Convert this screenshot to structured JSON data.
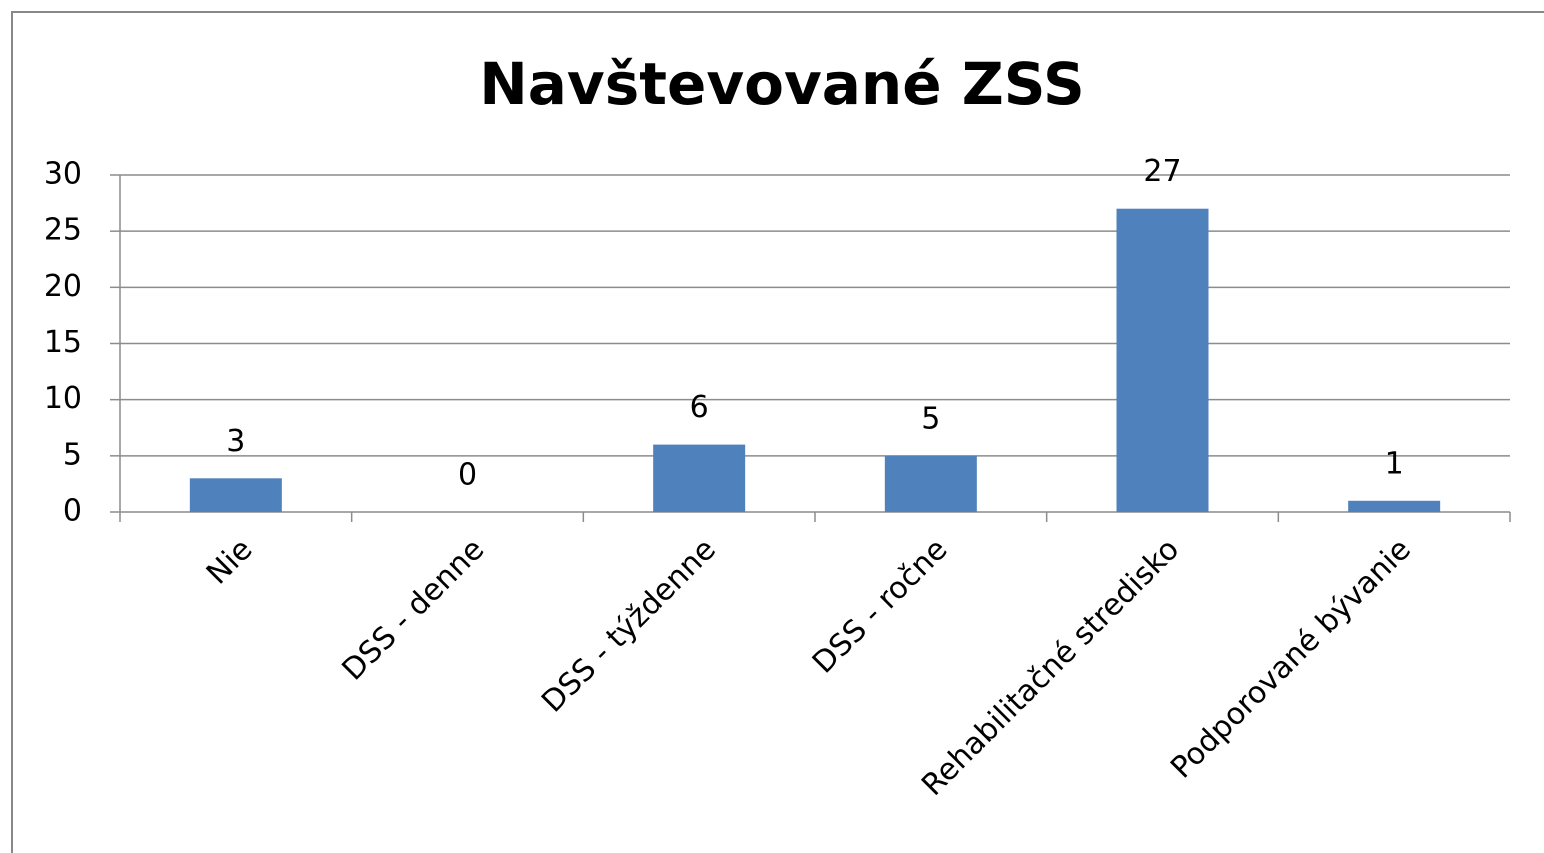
{
  "chart_data": {
    "type": "bar",
    "title": "Navštevované ZSS",
    "categories": [
      "Nie",
      "DSS - denne",
      "DSS - týždenne",
      "DSS - ročne",
      "Rehabilitačné stredisko",
      "Podporované bývanie"
    ],
    "values": [
      3,
      0,
      6,
      5,
      27,
      1
    ],
    "color": "#4f81bd",
    "ylim": [
      0,
      30
    ],
    "yticks": [
      0,
      5,
      10,
      15,
      20,
      25,
      30
    ],
    "grid": true
  }
}
